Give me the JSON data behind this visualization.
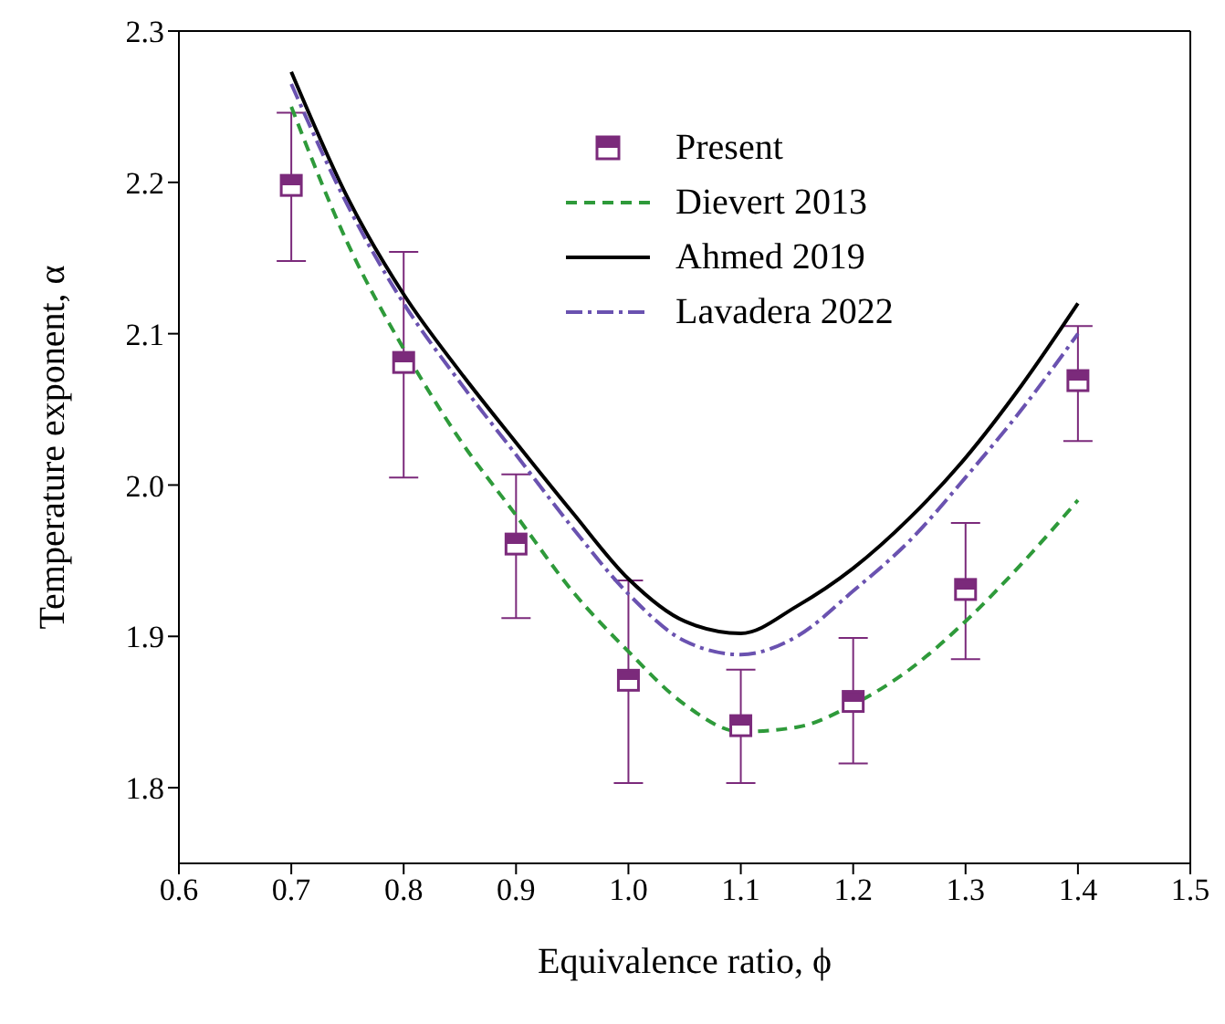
{
  "chart_data": {
    "type": "line",
    "xlabel": "Equivalence ratio, ϕ",
    "ylabel": "Temperature exponent, α",
    "xlim": [
      0.6,
      1.5
    ],
    "xticks": [
      0.6,
      0.7,
      0.8,
      0.9,
      {
        "value": 1,
        "label": "1.0"
      },
      1.1,
      1.2,
      1.3,
      1.4,
      1.5
    ],
    "ylim": [
      1.75,
      2.3
    ],
    "yticks": [
      1.8,
      1.9,
      {
        "value": 2,
        "label": "2.0"
      },
      2.1,
      2.2,
      2.3
    ],
    "grid": false,
    "legend": "top right",
    "series": [
      {
        "name": "Present",
        "type": "scatter",
        "marker": "square",
        "color": "#7b2a7b",
        "x": [
          0.7,
          0.8,
          0.9,
          1.0,
          1.1,
          1.2,
          1.3,
          1.4
        ],
        "values": [
          2.198,
          2.081,
          1.961,
          1.871,
          1.841,
          1.857,
          1.931,
          2.069
        ],
        "errors": [
          [
            2.148,
            2.246
          ],
          [
            2.005,
            2.154
          ],
          [
            1.912,
            2.007
          ],
          [
            1.803,
            1.937
          ],
          [
            1.803,
            1.878
          ],
          [
            1.816,
            1.899
          ],
          [
            1.885,
            1.975
          ],
          [
            2.029,
            2.105
          ]
        ]
      },
      {
        "name": "Dievert 2013",
        "line_style": "dashed",
        "color": "#2e9a3a",
        "x": [
          0.7,
          0.75,
          0.8,
          0.85,
          0.9,
          0.95,
          1.0,
          1.05,
          1.1,
          1.15,
          1.2,
          1.25,
          1.3,
          1.35,
          1.4
        ],
        "values": [
          2.25,
          2.16,
          2.09,
          2.03,
          1.98,
          1.93,
          1.89,
          1.855,
          1.837,
          1.84,
          1.855,
          1.878,
          1.91,
          1.948,
          1.99
        ]
      },
      {
        "name": "Ahmed 2019",
        "line_style": "solid",
        "color": "#000000",
        "x": [
          0.7,
          0.75,
          0.8,
          0.85,
          0.9,
          0.95,
          1.0,
          1.05,
          1.1,
          1.15,
          1.2,
          1.25,
          1.3,
          1.35,
          1.4
        ],
        "values": [
          2.273,
          2.19,
          2.126,
          2.075,
          2.028,
          1.982,
          1.938,
          1.91,
          1.902,
          1.92,
          1.945,
          1.978,
          2.018,
          2.066,
          2.12
        ]
      },
      {
        "name": "Lavadera 2022",
        "line_style": "dashdot",
        "color": "#6a52b0",
        "x": [
          0.7,
          0.75,
          0.8,
          0.85,
          0.9,
          0.95,
          1.0,
          1.05,
          1.1,
          1.15,
          1.2,
          1.25,
          1.3,
          1.35,
          1.4
        ],
        "values": [
          2.265,
          2.185,
          2.12,
          2.068,
          2.02,
          1.972,
          1.928,
          1.897,
          1.888,
          1.9,
          1.93,
          1.963,
          2.005,
          2.05,
          2.1
        ]
      }
    ]
  }
}
